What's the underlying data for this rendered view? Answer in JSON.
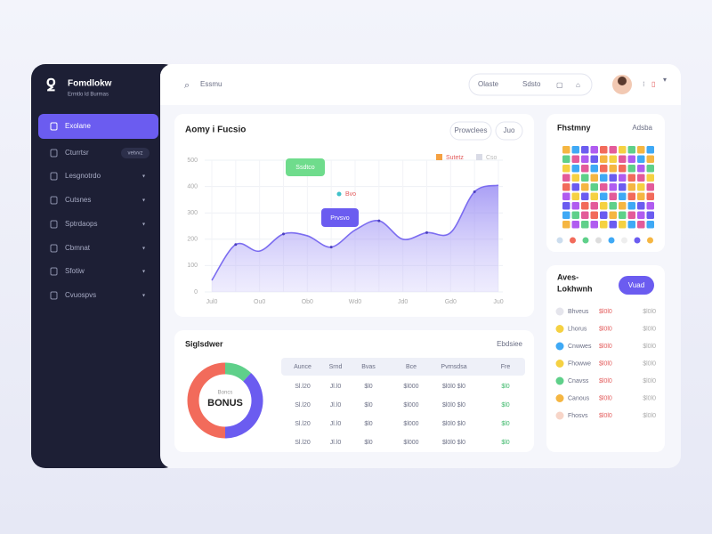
{
  "sidebar": {
    "brand": "Fomdlokw",
    "tagline": "Ermtlo ld Burmas",
    "menu": [
      {
        "label": "Exolane"
      },
      {
        "label": "Cturrtsr",
        "badge": "vetvvz"
      },
      {
        "label": "Lesgnotrdo"
      },
      {
        "label": "Cutsnes"
      },
      {
        "label": "Sptrdaops"
      },
      {
        "label": "Cbmnat"
      },
      {
        "label": "Sfotiw"
      },
      {
        "label": "Cvuospvs"
      }
    ]
  },
  "topbar": {
    "search": "Essmu",
    "status": "Olaste",
    "status_right": "Sdsto"
  },
  "chart_data": [
    {
      "type": "line",
      "title": "Aomy i Fucsio",
      "filters": [
        "Prowclees",
        "Juo"
      ],
      "legend": [
        {
          "label": "Sutetz",
          "color": "#f5a142"
        },
        {
          "label": "Cso",
          "color": "#d9dbe6"
        }
      ],
      "annotations": [
        "Ssdtco",
        "Bvo",
        "Prvsvo"
      ],
      "categories": [
        "Jul0",
        null,
        "Ou0",
        null,
        "Ob0",
        null,
        "Wd0",
        null,
        "Jd0",
        null,
        "Gd0",
        null,
        "Ju0"
      ],
      "series": [
        {
          "color": "#7b6cf0",
          "values": [
            44,
            180,
            155,
            220,
            213,
            170,
            235,
            270,
            200,
            225,
            225,
            380,
            405
          ]
        }
      ],
      "ylim": [
        0,
        500
      ],
      "yticks": [
        0,
        100,
        200,
        300,
        400,
        500
      ],
      "grid": true
    },
    {
      "type": "pie",
      "values": [
        12,
        38,
        50
      ],
      "colors": [
        "#5fd08a",
        "#6b5cf0",
        "#f26b5b"
      ],
      "center_label": "Boncs",
      "center_value": "BONUS"
    }
  ],
  "table": {
    "title": "Siglsdwer",
    "link": "Ebdsiee",
    "headers": [
      "Aunce",
      "Srnd",
      "Bvas",
      "Bce",
      "Pvrnsdsa",
      "Fre"
    ],
    "rows": [
      [
        "Sl.l20",
        "Jl.l0",
        "$l0",
        "$l000",
        "$l0l0 $l0",
        "$l0"
      ],
      [
        "Sl.l20",
        "Jl.l0",
        "$l0",
        "$l000",
        "$l0l0 $l0",
        "$l0"
      ],
      [
        "Sl.l20",
        "Jl.l0",
        "$l0",
        "$l000",
        "$l0l0 $l0",
        "$l0"
      ],
      [
        "Sl.l20",
        "Jl.l0",
        "$l0",
        "$l000",
        "$l0l0 $l0",
        "$l0"
      ]
    ]
  },
  "grid_card": {
    "title": "Fhstmny",
    "link": "Adsba"
  },
  "list_card": {
    "title": [
      "Aves-",
      "Lokhwnh"
    ],
    "button": "Vuad",
    "rows": [
      {
        "name": "Bhveus",
        "value": "$l0l0",
        "amount": "$l0l0"
      },
      {
        "name": "Lhorus",
        "value": "$l0l0",
        "amount": "$l0l0"
      },
      {
        "name": "Cnwwes",
        "value": "$l0l0",
        "amount": "$l0l0"
      },
      {
        "name": "Fhowwe",
        "value": "$l0l0",
        "amount": "$l0l0"
      },
      {
        "name": "Cnavss",
        "value": "$l0l0",
        "amount": "$l0l0"
      },
      {
        "name": "Canous",
        "value": "$l0l0",
        "amount": "$l0l0"
      },
      {
        "name": "Fhosvs",
        "value": "$l0l0",
        "amount": "$l0l0"
      }
    ]
  }
}
